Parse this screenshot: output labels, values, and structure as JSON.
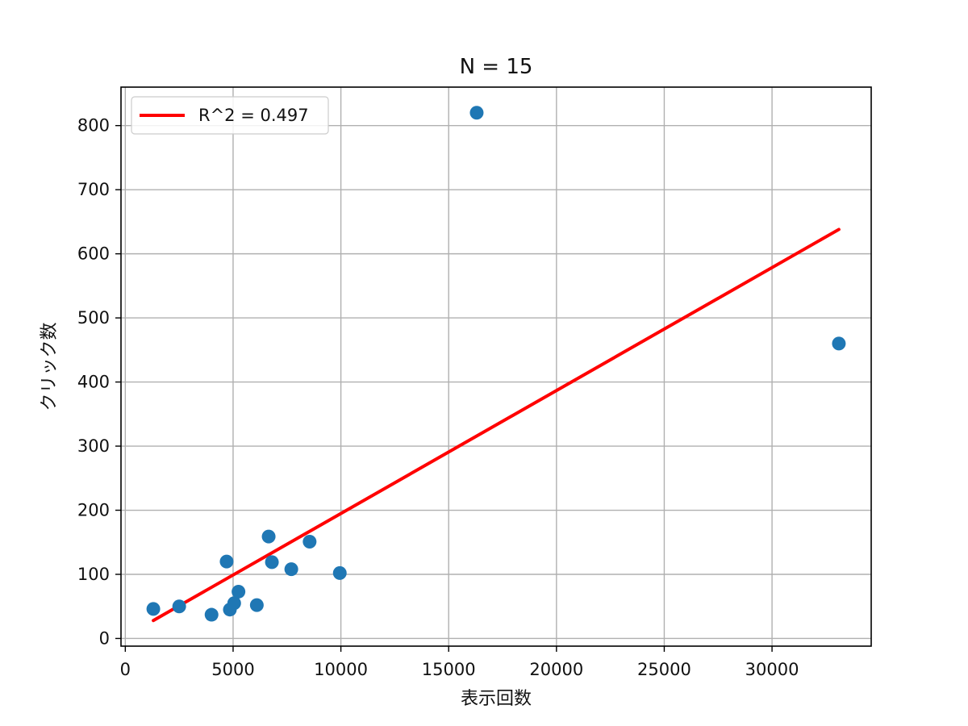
{
  "chart_data": {
    "type": "scatter",
    "title": "N = 15",
    "xlabel": "表示回数",
    "ylabel": "クリック数",
    "xlim": [
      -200,
      34600
    ],
    "ylim": [
      -12,
      860
    ],
    "xticks": [
      0,
      5000,
      10000,
      15000,
      20000,
      25000,
      30000
    ],
    "yticks": [
      0,
      100,
      200,
      300,
      400,
      500,
      600,
      700,
      800
    ],
    "grid": true,
    "legend_position": "top-left",
    "points": [
      {
        "x": 1300,
        "y": 46
      },
      {
        "x": 2500,
        "y": 50
      },
      {
        "x": 4000,
        "y": 37
      },
      {
        "x": 4700,
        "y": 120
      },
      {
        "x": 4850,
        "y": 45
      },
      {
        "x": 5050,
        "y": 55
      },
      {
        "x": 5250,
        "y": 73
      },
      {
        "x": 6100,
        "y": 52
      },
      {
        "x": 6650,
        "y": 159
      },
      {
        "x": 6800,
        "y": 119
      },
      {
        "x": 7700,
        "y": 108
      },
      {
        "x": 8550,
        "y": 151
      },
      {
        "x": 9950,
        "y": 102
      },
      {
        "x": 16300,
        "y": 820
      },
      {
        "x": 33100,
        "y": 460
      }
    ],
    "fit_line": {
      "label": "R^2 = 0.497",
      "x": [
        1300,
        33100
      ],
      "y": [
        28,
        638
      ]
    },
    "colors": {
      "points": "#1f77b4",
      "fit_line": "#ff0000",
      "grid": "#b0b0b0",
      "axes": "#000000"
    }
  }
}
